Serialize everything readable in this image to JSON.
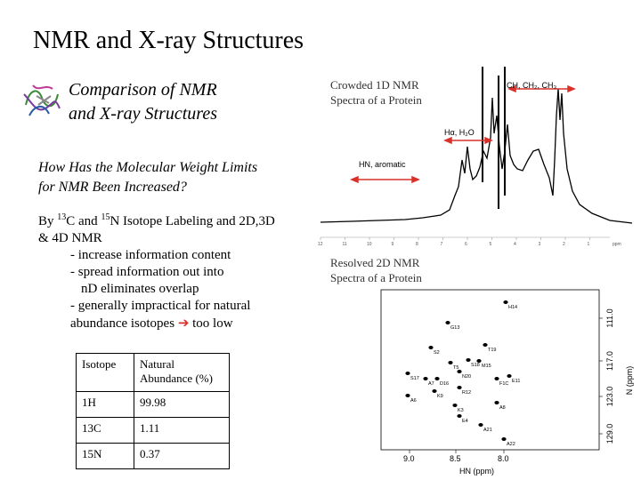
{
  "slide": {
    "title": "NMR and X-ray Structures",
    "subtitle_line1": "Comparison of NMR",
    "subtitle_line2": "and X-ray Structures",
    "question_line1": "How Has the  Molecular Weight Limits",
    "question_line2": "for NMR Been Increased?",
    "method": {
      "by": "By ",
      "c_sup": "13",
      "c_and": "C and ",
      "n_sup": "15",
      "n_rest": "N Isotope Labeling and 2D,3D",
      "line2": "& 4D NMR",
      "bullet1": "- increase information content",
      "bullet2": "- spread information out into",
      "bullet2b": "nD eliminates overlap",
      "bullet3": "- generally impractical for natural",
      "bullet3b": "abundance isotopes",
      "bullet3c": "too low"
    },
    "table": {
      "header": [
        "Isotope",
        "Natural Abundance (%)"
      ],
      "rows": [
        [
          "1H",
          "99.98"
        ],
        [
          "13C",
          "1.11"
        ],
        [
          "15N",
          "0.37"
        ]
      ]
    },
    "caption_1d_line1": "Crowded 1D NMR",
    "caption_1d_line2": "Spectra of a Protein",
    "caption_2d_line1": "Resolved 2D NMR",
    "caption_2d_line2": "Spectra of a Protein"
  },
  "spectrum_1d": {
    "label_ch": "CH, CH₂, CH₃",
    "label_ha": "Hα, H₂O",
    "label_hn": "HN, aromatic",
    "axis_ppm": "ppm",
    "ticks": [
      "12",
      "11",
      "10",
      "9",
      "8",
      "7",
      "6",
      "5",
      "4",
      "3",
      "2",
      "1"
    ]
  },
  "spectrum_2d": {
    "peaks": [
      "H14",
      "G13",
      "S2",
      "T19",
      "T5",
      "S18",
      "M15",
      "S17",
      "N20",
      "A7",
      "D16",
      "F1C",
      "E11",
      "R12",
      "K9",
      "A6",
      "K3",
      "A8",
      "E4",
      "A21",
      "A22"
    ],
    "x_axis_label": "HN (ppm)",
    "x_ticks": [
      "9.0",
      "8.5",
      "8.0"
    ],
    "y_axis_label": "N (ppm)",
    "y_ticks": [
      "111.0",
      "117.0",
      "123.0",
      "129.0"
    ]
  },
  "colors": {
    "arrow_red": "#d9302a",
    "text_grey": "#333333"
  }
}
